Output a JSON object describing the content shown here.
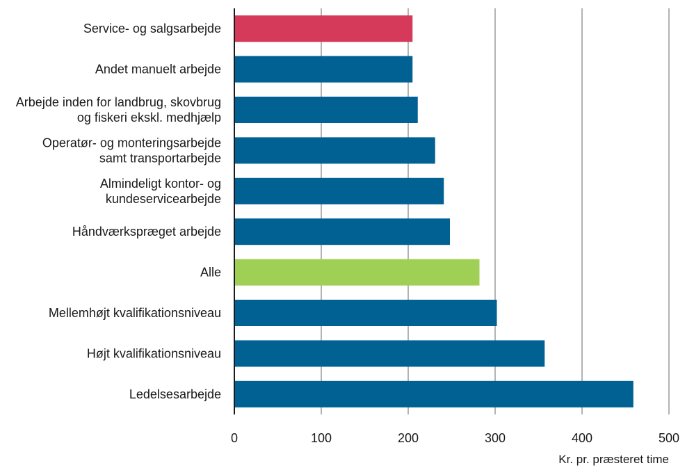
{
  "chart_data": {
    "type": "bar",
    "orientation": "horizontal",
    "title": "",
    "xlabel": "Kr. pr. præsteret time",
    "ylabel": "",
    "xlim": [
      0,
      500
    ],
    "xticks": [
      0,
      100,
      200,
      300,
      400,
      500
    ],
    "grid": "vertical",
    "legend": "none",
    "categories": [
      [
        "Service- og salgsarbejde"
      ],
      [
        "Andet manuelt arbejde"
      ],
      [
        "Arbejde inden for landbrug, skovbrug",
        "og fiskeri ekskl. medhjælp"
      ],
      [
        "Operatør- og monteringsarbejde",
        "samt transportarbejde"
      ],
      [
        "Almindeligt kontor- og",
        "kundeservicearbejde"
      ],
      [
        "Håndværkspræget arbejde"
      ],
      [
        "Alle"
      ],
      [
        "Mellemhøjt kvalifikationsniveau"
      ],
      [
        "Højt kvalifikationsniveau"
      ],
      [
        "Ledelsesarbejde"
      ]
    ],
    "values": [
      205,
      205,
      211,
      231,
      241,
      248,
      282,
      302,
      357,
      459
    ],
    "colors": [
      "#d63a5a",
      "#006192",
      "#006192",
      "#006192",
      "#006192",
      "#006192",
      "#a0cf55",
      "#006192",
      "#006192",
      "#006192"
    ]
  }
}
